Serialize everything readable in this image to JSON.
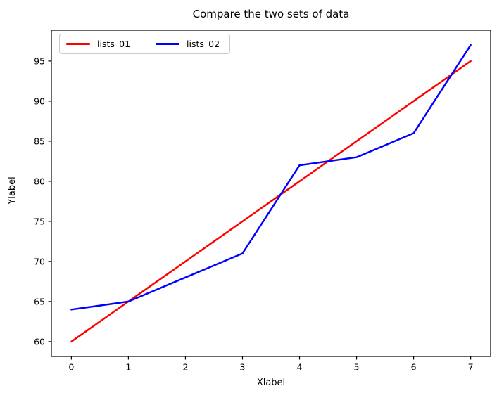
{
  "chart_data": {
    "type": "line",
    "title": "Compare the two sets of data",
    "xlabel": "Xlabel",
    "ylabel": "Ylabel",
    "x": [
      0,
      1,
      2,
      3,
      4,
      5,
      6,
      7
    ],
    "series": [
      {
        "name": "lists_01",
        "color": "#ff0000",
        "values": [
          60,
          65,
          70,
          75,
          80,
          85,
          90,
          95
        ]
      },
      {
        "name": "lists_02",
        "color": "#0000ff",
        "values": [
          64,
          65,
          68,
          71,
          82,
          83,
          86,
          97
        ]
      }
    ],
    "xticks": [
      0,
      1,
      2,
      3,
      4,
      5,
      6,
      7
    ],
    "yticks": [
      60,
      65,
      70,
      75,
      80,
      85,
      90,
      95
    ],
    "xlim": [
      -0.35,
      7.35
    ],
    "ylim": [
      58.15,
      98.85
    ],
    "grid": false,
    "legend_position": "upper-left",
    "legend_columns": 2,
    "axis_color": "#000000",
    "background_color": "#ffffff"
  }
}
